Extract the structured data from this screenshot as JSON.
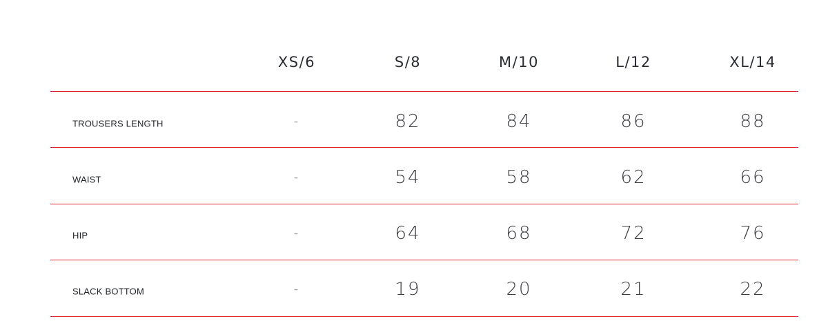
{
  "sizes": [
    "XS/6",
    "S/8",
    "M/10",
    "L/12",
    "XL/14"
  ],
  "rows": [
    {
      "label": "TROUSERS LENGTH",
      "values": [
        "-",
        "82",
        "84",
        "86",
        "88"
      ]
    },
    {
      "label": "WAIST",
      "values": [
        "-",
        "54",
        "58",
        "62",
        "66"
      ]
    },
    {
      "label": "HIP",
      "values": [
        "-",
        "64",
        "68",
        "72",
        "76"
      ]
    },
    {
      "label": "SLACK BOTTOM",
      "values": [
        "-",
        "19",
        "20",
        "21",
        "22"
      ]
    }
  ],
  "colors": {
    "divider": "#d9232e",
    "text": "#2a2d33"
  }
}
